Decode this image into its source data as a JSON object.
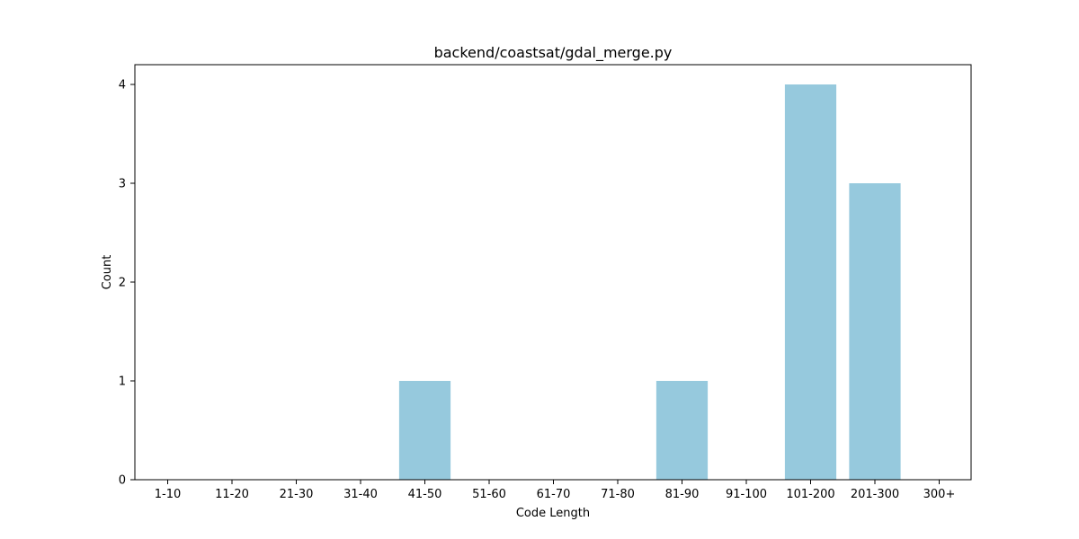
{
  "chart_data": {
    "type": "bar",
    "title": "backend/coastsat/gdal_merge.py",
    "xlabel": "Code Length",
    "ylabel": "Count",
    "categories": [
      "1-10",
      "11-20",
      "21-30",
      "31-40",
      "41-50",
      "51-60",
      "61-70",
      "71-80",
      "81-90",
      "91-100",
      "101-200",
      "201-300",
      "300+"
    ],
    "values": [
      0,
      0,
      0,
      0,
      1,
      0,
      0,
      0,
      1,
      0,
      4,
      3,
      0
    ],
    "ylim": [
      0,
      4.2
    ],
    "yticks": [
      0,
      1,
      2,
      3,
      4
    ],
    "bar_color": "#96c9dd",
    "grid": false
  }
}
